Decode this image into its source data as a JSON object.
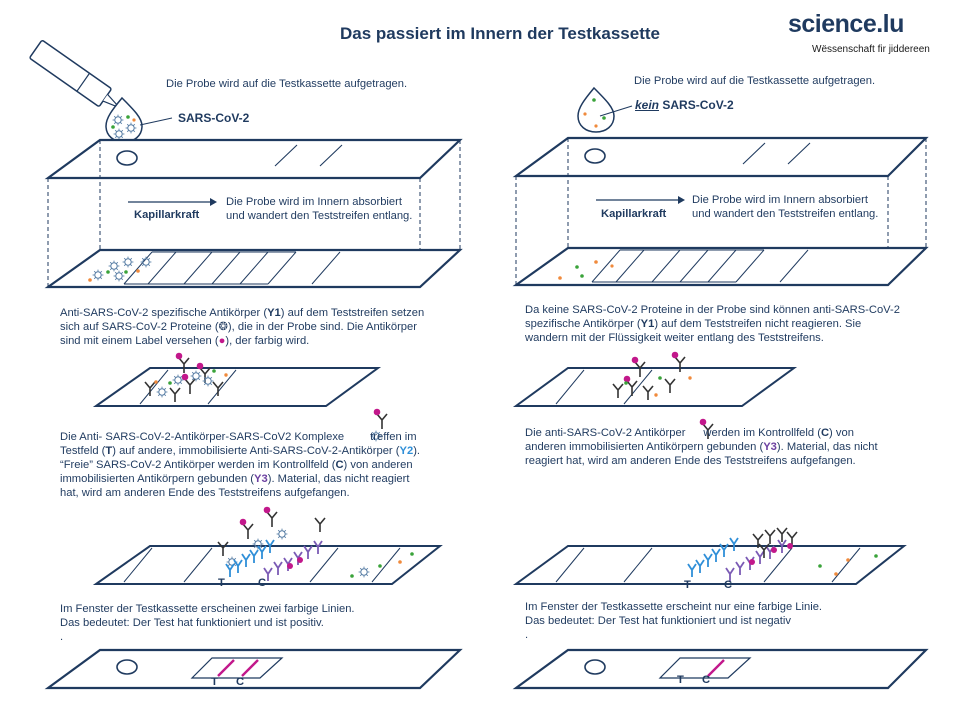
{
  "title": "Das passiert im Innern der Testkassette",
  "logo": {
    "name": "science.lu",
    "tagline": "Wëssenschaft fir jiddereen"
  },
  "left": {
    "sample_text": "Die Probe wird auf die Testkassette aufgetragen.",
    "sample_label": "SARS-CoV-2",
    "capillary_label": "Kapillarkraft",
    "absorb_line1": "Die Probe wird im Innern absorbiert",
    "absorb_line2": "und wandert den Teststreifen entlang.",
    "step2": {
      "l1a": "Anti-SARS-CoV-2 spezifische Antikörper (",
      "l1b": "Y1",
      "l1c": ") auf dem Teststreifen setzen",
      "l2": "sich auf SARS-CoV-2 Proteine (❂), die in der Probe sind. Die Antikörper",
      "l3a": "sind mit einem Label versehen (",
      "l3b": "●",
      "l3c": "), der farbig wird."
    },
    "step3": {
      "l1a": "Die Anti- SARS-CoV-2-Antikörper-SARS-CoV2 Komplexe",
      "l1b": "treffen im",
      "l2a": "Testfeld (",
      "l2b": "T",
      "l2c": ") auf andere, immobilisierte Anti-SARS-CoV-2-Antikörper (",
      "l2d": "Y2",
      "l2e": ").",
      "l3a": "“Freie” SARS-CoV-2 Antikörper werden im Kontrollfeld (",
      "l3b": "C",
      "l3c": ") von anderen",
      "l4a": "immobilisierten Antikörpern gebunden (",
      "l4b": "Y3",
      "l4c": "). Material, das nicht reagiert",
      "l5": "hat, wird am anderen Ende des Teststreifens aufgefangen."
    },
    "result_line1": "Im Fenster der Testkassette erscheinen zwei farbige Linien.",
    "result_line2": "Das bedeutet: Der Test hat funktioniert und ist positiv.",
    "dot": ".",
    "strip_t": "T",
    "strip_c": "C",
    "window_t": "T",
    "window_c": "C"
  },
  "right": {
    "sample_text": "Die Probe wird auf die Testkassette aufgetragen.",
    "sample_label_kein": "kein",
    "sample_label": "SARS-CoV-2",
    "capillary_label": "Kapillarkraft",
    "absorb_line1": "Die Probe wird im Innern absorbiert",
    "absorb_line2": "und wandert den Teststreifen entlang.",
    "step2": {
      "l1": "Da keine SARS-CoV-2 Proteine in der Probe sind können anti-SARS-CoV-2",
      "l2a": "spezifische Antikörper (",
      "l2b": "Y1",
      "l2c": ") auf dem Teststreifen nicht reagieren. Sie",
      "l3": "wandern mit der Flüssigkeit weiter entlang des Teststreifens."
    },
    "step3": {
      "l1a": "Die anti-SARS-CoV-2 Antikörper",
      "l1b": "werden im Kontrollfeld (",
      "l1c": "C",
      "l1d": ") von",
      "l2a": "anderen immobilisierten Antikörpern gebunden (",
      "l2b": "Y3",
      "l2c": "). Material, das nicht",
      "l3": "reagiert hat, wird am anderen Ende des Teststreifens aufgefangen."
    },
    "result_line1": "Im Fenster der Testkassette erscheint nur eine farbige Linie.",
    "result_line2": "Das bedeutet: Der Test hat funktioniert und ist negativ",
    "dot": ".",
    "strip_t": "T",
    "strip_c": "C",
    "window_t": "T",
    "window_c": "C"
  },
  "colors": {
    "navy": "#1f3a5f",
    "magenta": "#c2188b",
    "blue": "#2f8fd8",
    "purple": "#6b3fa0",
    "green": "#3aa33a",
    "orange": "#f08a3c"
  }
}
